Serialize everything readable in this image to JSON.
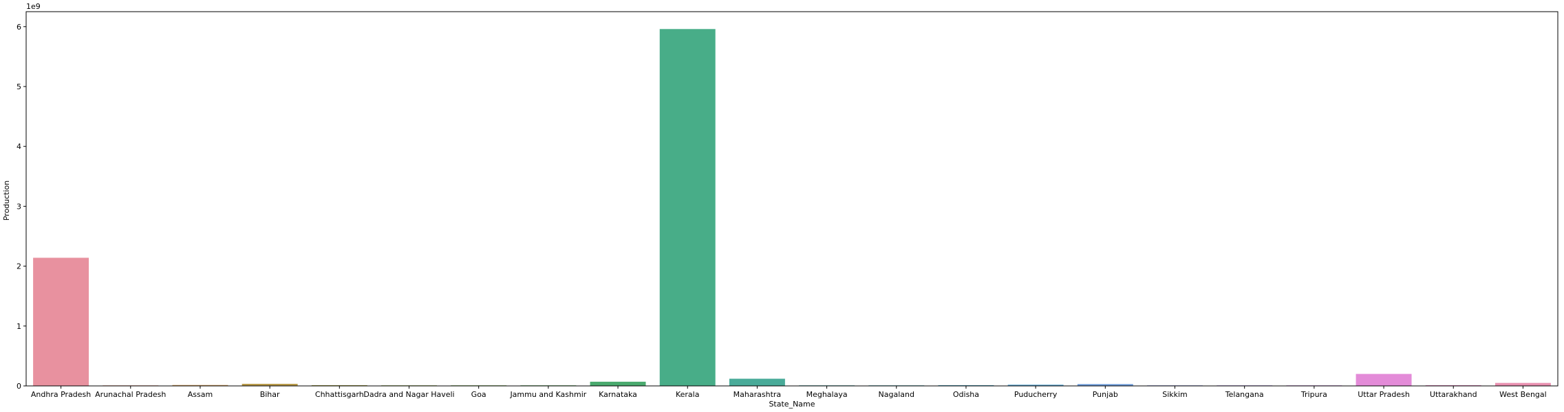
{
  "chart_data": {
    "type": "bar",
    "xlabel": "State_Name",
    "ylabel": "Production",
    "y_scale_label": "1e9",
    "ylim": [
      0,
      6.25
    ],
    "y_ticks": [
      0,
      1,
      2,
      3,
      4,
      5,
      6
    ],
    "y_tick_labels": [
      "0",
      "1",
      "2",
      "3",
      "4",
      "5",
      "6"
    ],
    "grid": false,
    "categories": [
      "Andhra Pradesh",
      "Arunachal Pradesh",
      "Assam",
      "Bihar",
      "Chhattisgarh",
      "Dadra and Nagar Haveli",
      "Goa",
      "Jammu and Kashmir",
      "Karnataka",
      "Kerala",
      "Maharashtra",
      "Meghalaya",
      "Nagaland",
      "Odisha",
      "Puducherry",
      "Punjab",
      "Sikkim",
      "Telangana",
      "Tripura",
      "Uttar Pradesh",
      "Uttarakhand",
      "West Bengal"
    ],
    "values": [
      2.14,
      0.002,
      0.015,
      0.035,
      0.012,
      0.001,
      0.002,
      0.001,
      0.07,
      5.96,
      0.12,
      0.001,
      0.001,
      0.012,
      0.02,
      0.03,
      0.001,
      0.008,
      0.001,
      0.2,
      0.012,
      0.05
    ],
    "colors": [
      "#e8919f",
      "#e59a86",
      "#d09a5a",
      "#b89a4a",
      "#a39f45",
      "#8aa53f",
      "#6fa944",
      "#52ad56",
      "#4aaa6e",
      "#48ad88",
      "#49ab99",
      "#4aa8a6",
      "#4ba6b2",
      "#4ea4bf",
      "#55a0cc",
      "#6b9ad8",
      "#8a92dd",
      "#a889dd",
      "#c282d8",
      "#e38bd8",
      "#e88cc5",
      "#e991b1"
    ]
  }
}
